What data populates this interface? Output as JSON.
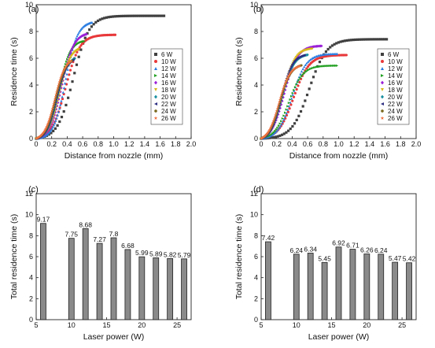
{
  "figure": {
    "background": "#ffffff",
    "marker_colors": {
      "6 W": "#404040",
      "10 W": "#e8383a",
      "12 W": "#2a7de1",
      "14 W": "#22a022",
      "16 W": "#9a1fd8",
      "18 W": "#d8b818",
      "20 W": "#1890a0",
      "22 W": "#2c2c80",
      "24 W": "#7a6a20",
      "26 W": "#f07040"
    },
    "bar_color": "#8a8a8a"
  },
  "chart_data": [
    {
      "panel": "(a)",
      "type": "scatter",
      "xlabel": "Distance from nozzle (mm)",
      "ylabel": "Residence time (s)",
      "xlim": [
        0,
        2.0
      ],
      "ylim": [
        0,
        10
      ],
      "xticks": [
        "0",
        "0.2",
        "0.4",
        "0.6",
        "0.8",
        "1.0",
        "1.2",
        "1.4",
        "1.6",
        "1.8",
        "2.0"
      ],
      "yticks": [
        "0",
        "2",
        "4",
        "6",
        "8",
        "10"
      ],
      "legend_position": "center-right",
      "series": [
        {
          "name": "6 W",
          "marker": "square",
          "xmax": 1.65,
          "ymax": 9.17,
          "x_mid": 0.48,
          "steep": 10
        },
        {
          "name": "10 W",
          "marker": "circle",
          "xmax": 1.02,
          "ymax": 7.75,
          "x_mid": 0.38,
          "steep": 11
        },
        {
          "name": "12 W",
          "marker": "triangle-up",
          "xmax": 0.72,
          "ymax": 8.68,
          "x_mid": 0.38,
          "steep": 13
        },
        {
          "name": "14 W",
          "marker": "triangle-right",
          "xmax": 0.62,
          "ymax": 7.27,
          "x_mid": 0.3,
          "steep": 14
        },
        {
          "name": "16 W",
          "marker": "diamond",
          "xmax": 0.65,
          "ymax": 7.8,
          "x_mid": 0.33,
          "steep": 13
        },
        {
          "name": "18 W",
          "marker": "triangle-down",
          "xmax": 0.55,
          "ymax": 6.68,
          "x_mid": 0.3,
          "steep": 14
        },
        {
          "name": "20 W",
          "marker": "diamond",
          "xmax": 0.5,
          "ymax": 5.99,
          "x_mid": 0.27,
          "steep": 15
        },
        {
          "name": "22 W",
          "marker": "triangle-left",
          "xmax": 0.48,
          "ymax": 5.89,
          "x_mid": 0.26,
          "steep": 15
        },
        {
          "name": "24 W",
          "marker": "hexagon",
          "xmax": 0.46,
          "ymax": 5.82,
          "x_mid": 0.25,
          "steep": 15
        },
        {
          "name": "26 W",
          "marker": "star",
          "xmax": 0.45,
          "ymax": 5.79,
          "x_mid": 0.24,
          "steep": 15
        }
      ]
    },
    {
      "panel": "(b)",
      "type": "scatter",
      "xlabel": "Distance from nozzle (mm)",
      "ylabel": "Residence time (s)",
      "xlim": [
        0,
        2.0
      ],
      "ylim": [
        0,
        10
      ],
      "xticks": [
        "0",
        "0.2",
        "0.4",
        "0.6",
        "0.8",
        "1.0",
        "1.2",
        "1.4",
        "1.6",
        "1.8",
        "2.0"
      ],
      "yticks": [
        "0",
        "2",
        "4",
        "6",
        "8",
        "10"
      ],
      "legend_position": "center-right",
      "series": [
        {
          "name": "6 W",
          "marker": "square",
          "xmax": 1.62,
          "ymax": 7.42,
          "x_mid": 0.62,
          "steep": 9
        },
        {
          "name": "10 W",
          "marker": "circle",
          "xmax": 1.1,
          "ymax": 6.24,
          "x_mid": 0.42,
          "steep": 10
        },
        {
          "name": "12 W",
          "marker": "triangle-up",
          "xmax": 0.98,
          "ymax": 6.34,
          "x_mid": 0.4,
          "steep": 11
        },
        {
          "name": "14 W",
          "marker": "triangle-right",
          "xmax": 0.98,
          "ymax": 5.45,
          "x_mid": 0.36,
          "steep": 11
        },
        {
          "name": "16 W",
          "marker": "diamond",
          "xmax": 0.78,
          "ymax": 6.92,
          "x_mid": 0.3,
          "steep": 12
        },
        {
          "name": "18 W",
          "marker": "triangle-down",
          "xmax": 0.66,
          "ymax": 6.71,
          "x_mid": 0.28,
          "steep": 13
        },
        {
          "name": "20 W",
          "marker": "diamond",
          "xmax": 0.6,
          "ymax": 6.26,
          "x_mid": 0.27,
          "steep": 13
        },
        {
          "name": "22 W",
          "marker": "triangle-left",
          "xmax": 0.56,
          "ymax": 6.24,
          "x_mid": 0.26,
          "steep": 14
        },
        {
          "name": "24 W",
          "marker": "hexagon",
          "xmax": 0.52,
          "ymax": 5.47,
          "x_mid": 0.24,
          "steep": 14
        },
        {
          "name": "26 W",
          "marker": "star",
          "xmax": 0.5,
          "ymax": 5.42,
          "x_mid": 0.23,
          "steep": 14
        }
      ]
    },
    {
      "panel": "(c)",
      "type": "bar",
      "xlabel": "Laser power (W)",
      "ylabel": "Total residence time (s)",
      "xlim": [
        5,
        27
      ],
      "ylim": [
        0,
        12
      ],
      "xticks": [
        "5",
        "10",
        "15",
        "20",
        "25"
      ],
      "yticks": [
        "0",
        "2",
        "4",
        "6",
        "8",
        "10",
        "12"
      ],
      "x": [
        6,
        10,
        12,
        14,
        16,
        18,
        20,
        22,
        24,
        26
      ],
      "values": [
        9.17,
        7.75,
        8.68,
        7.27,
        7.8,
        6.68,
        5.99,
        5.89,
        5.82,
        5.79
      ],
      "labels": [
        "9.17",
        "7.75",
        "8.68",
        "7.27",
        "7.8",
        "6.68",
        "5.99",
        "5.89",
        "5.82",
        "5.79"
      ]
    },
    {
      "panel": "(d)",
      "type": "bar",
      "xlabel": "Laser power (W)",
      "ylabel": "Total residence time (s)",
      "xlim": [
        5,
        27
      ],
      "ylim": [
        0,
        12
      ],
      "xticks": [
        "5",
        "10",
        "15",
        "20",
        "25"
      ],
      "yticks": [
        "0",
        "2",
        "4",
        "6",
        "8",
        "10",
        "12"
      ],
      "x": [
        6,
        10,
        12,
        14,
        16,
        18,
        20,
        22,
        24,
        26
      ],
      "values": [
        7.42,
        6.24,
        6.34,
        5.45,
        6.92,
        6.71,
        6.26,
        6.24,
        5.47,
        5.42
      ],
      "labels": [
        "7.42",
        "6.24",
        "6.34",
        "5.45",
        "6.92",
        "6.71",
        "6.26",
        "6.24",
        "5.47",
        "5.42"
      ]
    }
  ]
}
